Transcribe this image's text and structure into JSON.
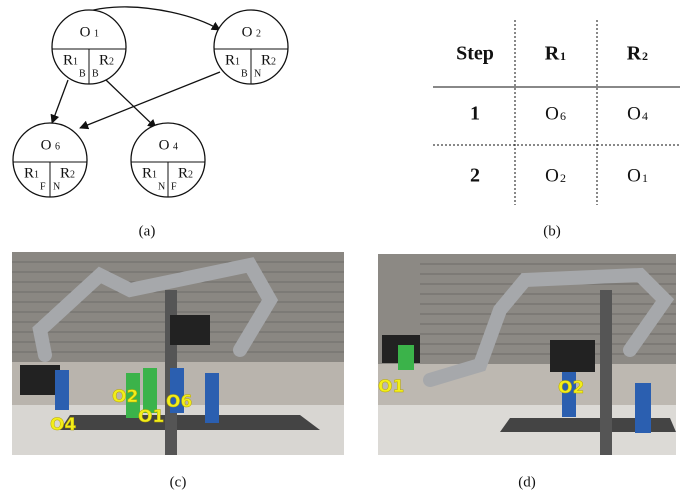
{
  "nodes": [
    {
      "name": "O",
      "index": "1",
      "cells": [
        {
          "robot": "R",
          "robot_index": "1",
          "state": "B"
        },
        {
          "robot": "R",
          "robot_index": "2",
          "state": "B"
        }
      ]
    },
    {
      "name": "O",
      "index": "2",
      "cells": [
        {
          "robot": "R",
          "robot_index": "1",
          "state": "B"
        },
        {
          "robot": "R",
          "robot_index": "2",
          "state": "N"
        }
      ]
    },
    {
      "name": "O",
      "index": "6",
      "cells": [
        {
          "robot": "R",
          "robot_index": "1",
          "state": "F"
        },
        {
          "robot": "R",
          "robot_index": "2",
          "state": "N"
        }
      ]
    },
    {
      "name": "O",
      "index": "4",
      "cells": [
        {
          "robot": "R",
          "robot_index": "1",
          "state": "N"
        },
        {
          "robot": "R",
          "robot_index": "2",
          "state": "F"
        }
      ]
    }
  ],
  "table": {
    "header": [
      {
        "text": "Step"
      },
      {
        "text": "R",
        "sub": "1"
      },
      {
        "text": "R",
        "sub": "2"
      }
    ],
    "rows": [
      [
        {
          "text": "1"
        },
        {
          "text": "O",
          "sub": "6"
        },
        {
          "text": "O",
          "sub": "4"
        }
      ],
      [
        {
          "text": "2"
        },
        {
          "text": "O",
          "sub": "2"
        },
        {
          "text": "O",
          "sub": "1"
        }
      ]
    ]
  },
  "photos": [
    {
      "labels": [
        "O4",
        "O2",
        "O1",
        "O6"
      ]
    },
    {
      "labels": [
        "O1",
        "O2"
      ]
    }
  ],
  "captions": [
    "(a)",
    "(b)",
    "(c)",
    "(d)"
  ]
}
